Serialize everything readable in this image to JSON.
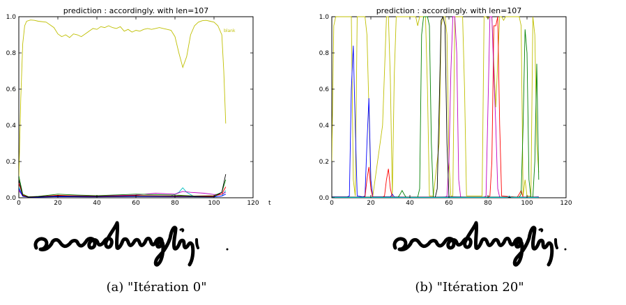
{
  "chart_data": [
    {
      "type": "line",
      "title": "prediction      : accordingly. with len=107",
      "xlabel": "t",
      "ylabel": "",
      "xlim": [
        0,
        120
      ],
      "ylim": [
        0,
        1.0
      ],
      "x_ticks": [
        "0",
        "20",
        "40",
        "60",
        "80",
        "100",
        "120"
      ],
      "y_ticks": [
        "0.0",
        "0.2",
        "0.4",
        "0.6",
        "0.8",
        "1.0"
      ],
      "grid": false,
      "legend": {
        "placement": "top-right",
        "entries": [
          "blank"
        ]
      },
      "caption": "(a) \"Itération 0\"",
      "handwriting_text": "accordingly.",
      "series": [
        {
          "name": "blank",
          "color": "#bfbf00",
          "x": [
            0,
            1,
            2,
            3,
            4,
            6,
            8,
            10,
            14,
            18,
            20,
            22,
            24,
            26,
            28,
            30,
            32,
            34,
            36,
            38,
            40,
            42,
            44,
            46,
            48,
            50,
            52,
            54,
            56,
            58,
            60,
            62,
            64,
            66,
            68,
            70,
            72,
            74,
            76,
            78,
            80,
            82,
            84,
            86,
            88,
            90,
            92,
            94,
            96,
            98,
            100,
            102,
            104,
            105,
            106
          ],
          "values": [
            0.1,
            0.55,
            0.85,
            0.95,
            0.975,
            0.982,
            0.98,
            0.975,
            0.97,
            0.94,
            0.905,
            0.89,
            0.9,
            0.885,
            0.905,
            0.9,
            0.89,
            0.905,
            0.92,
            0.935,
            0.93,
            0.945,
            0.94,
            0.95,
            0.94,
            0.935,
            0.945,
            0.92,
            0.93,
            0.915,
            0.925,
            0.92,
            0.93,
            0.935,
            0.93,
            0.935,
            0.94,
            0.935,
            0.93,
            0.925,
            0.89,
            0.8,
            0.72,
            0.78,
            0.9,
            0.95,
            0.97,
            0.978,
            0.98,
            0.975,
            0.97,
            0.95,
            0.9,
            0.7,
            0.41
          ]
        },
        {
          "color": "#00bfbf",
          "x": [
            0,
            2,
            5,
            10,
            20,
            40,
            60,
            78,
            82,
            84,
            86,
            90,
            100,
            104,
            106
          ],
          "values": [
            0.06,
            0.01,
            0.005,
            0.005,
            0.008,
            0.006,
            0.012,
            0.01,
            0.03,
            0.055,
            0.03,
            0.005,
            0.005,
            0.01,
            0.04
          ]
        },
        {
          "color": "#bf00bf",
          "x": [
            0,
            2,
            5,
            10,
            20,
            40,
            60,
            70,
            80,
            84,
            88,
            95,
            100,
            104,
            106
          ],
          "values": [
            0.04,
            0.01,
            0.004,
            0.006,
            0.012,
            0.01,
            0.015,
            0.025,
            0.02,
            0.035,
            0.03,
            0.025,
            0.018,
            0.02,
            0.03
          ]
        },
        {
          "color": "#008000",
          "x": [
            0,
            2,
            5,
            10,
            20,
            30,
            40,
            60,
            80,
            90,
            100,
            104,
            106
          ],
          "values": [
            0.12,
            0.02,
            0.005,
            0.008,
            0.02,
            0.015,
            0.012,
            0.02,
            0.015,
            0.01,
            0.012,
            0.03,
            0.1
          ]
        },
        {
          "color": "#ff0000",
          "x": [
            0,
            2,
            5,
            10,
            20,
            30,
            40,
            60,
            80,
            90,
            100,
            104,
            106
          ],
          "values": [
            0.08,
            0.015,
            0.004,
            0.006,
            0.014,
            0.01,
            0.008,
            0.012,
            0.01,
            0.008,
            0.01,
            0.02,
            0.06
          ]
        },
        {
          "color": "#0000ff",
          "x": [
            0,
            2,
            5,
            10,
            20,
            40,
            60,
            80,
            100,
            104,
            106
          ],
          "values": [
            0.05,
            0.008,
            0.003,
            0.004,
            0.006,
            0.005,
            0.007,
            0.006,
            0.005,
            0.01,
            0.02
          ]
        },
        {
          "color": "#000000",
          "x": [
            0,
            2,
            5,
            10,
            20,
            40,
            60,
            80,
            100,
            104,
            106
          ],
          "values": [
            0.1,
            0.012,
            0.004,
            0.006,
            0.01,
            0.007,
            0.01,
            0.008,
            0.006,
            0.03,
            0.13
          ]
        }
      ]
    },
    {
      "type": "line",
      "title": "prediction      : accordingly. with len=107",
      "xlabel": "",
      "ylabel": "",
      "xlim": [
        0,
        120
      ],
      "ylim": [
        0,
        1.0
      ],
      "x_ticks": [
        "0",
        "20",
        "40",
        "60",
        "80",
        "100",
        "120"
      ],
      "y_ticks": [
        "0.0",
        "0.2",
        "0.4",
        "0.6",
        "0.8",
        "1.0"
      ],
      "grid": false,
      "caption": "(b) \"Itération 20\"",
      "handwriting_text": "accordingly.",
      "series": [
        {
          "color": "#bfbf00",
          "x": [
            0,
            1,
            2,
            3,
            9,
            10,
            11,
            12,
            13,
            17,
            18,
            19,
            20,
            21,
            26,
            28,
            29,
            30,
            31,
            32,
            33,
            34,
            42,
            43,
            44,
            45,
            48,
            49,
            50,
            51,
            52,
            55,
            56,
            57,
            58,
            59,
            60,
            61,
            62,
            63,
            66,
            67,
            68,
            69,
            77,
            78,
            79,
            80,
            81,
            82,
            84,
            86,
            87,
            88,
            89,
            96,
            97,
            98,
            99,
            100,
            102,
            103,
            104,
            105,
            106
          ],
          "values": [
            0.2,
            0.95,
            1.0,
            1.0,
            1.0,
            1.0,
            0.1,
            0.01,
            1.0,
            1.0,
            0.9,
            0.5,
            0.05,
            0.01,
            0.4,
            1.0,
            1.0,
            0.65,
            0.01,
            0.68,
            1.0,
            1.0,
            1.0,
            1.0,
            0.95,
            1.0,
            1.0,
            0.6,
            0.01,
            0.01,
            0.01,
            0.3,
            0.95,
            1.0,
            1.0,
            0.9,
            0.2,
            0.01,
            0.01,
            1.0,
            1.0,
            1.0,
            0.6,
            0.01,
            0.01,
            1.0,
            1.0,
            0.99,
            1.0,
            1.0,
            0.5,
            1.0,
            1.0,
            0.98,
            1.0,
            1.0,
            0.95,
            0.01,
            0.1,
            0.01,
            0.01,
            1.0,
            0.9,
            0.3,
            0.14
          ]
        },
        {
          "color": "#0000ff",
          "x": [
            0,
            8,
            9,
            10,
            11,
            12,
            13,
            16,
            17,
            18,
            19,
            20,
            21,
            30,
            31,
            32,
            40,
            60,
            80,
            100,
            106
          ],
          "values": [
            0.005,
            0.005,
            0.01,
            0.6,
            0.84,
            0.4,
            0.01,
            0.005,
            0.01,
            0.3,
            0.55,
            0.1,
            0.005,
            0.005,
            0.02,
            0.005,
            0.003,
            0.005,
            0.003,
            0.003,
            0.005
          ]
        },
        {
          "color": "#ff0000",
          "x": [
            0,
            16,
            17,
            18,
            19,
            20,
            21,
            26,
            27,
            28,
            29,
            30,
            31,
            60,
            80,
            81,
            82,
            83,
            84,
            85,
            86,
            87,
            95,
            96,
            97,
            98,
            106
          ],
          "values": [
            0.003,
            0.003,
            0.005,
            0.1,
            0.17,
            0.05,
            0.003,
            0.003,
            0.01,
            0.1,
            0.16,
            0.05,
            0.003,
            0.003,
            0.003,
            0.01,
            0.2,
            0.95,
            0.95,
            1.0,
            0.4,
            0.01,
            0.003,
            0.02,
            0.04,
            0.003,
            0.003
          ]
        },
        {
          "color": "#bf00bf",
          "x": [
            0,
            58,
            59,
            60,
            61,
            62,
            63,
            64,
            65,
            66,
            78,
            79,
            80,
            81,
            82,
            83,
            84,
            85,
            86,
            106
          ],
          "values": [
            0.003,
            0.003,
            0.01,
            0.2,
            0.7,
            1.0,
            1.0,
            0.8,
            0.1,
            0.003,
            0.003,
            0.01,
            0.5,
            1.0,
            1.0,
            0.68,
            0.4,
            0.05,
            0.003,
            0.003
          ]
        },
        {
          "color": "#008000",
          "x": [
            0,
            34,
            35,
            36,
            37,
            38,
            44,
            45,
            46,
            47,
            48,
            49,
            50,
            51,
            52,
            96,
            97,
            98,
            99,
            100,
            101,
            102,
            103,
            104,
            105,
            106
          ],
          "values": [
            0.003,
            0.003,
            0.02,
            0.04,
            0.02,
            0.003,
            0.003,
            0.05,
            0.9,
            1.0,
            1.0,
            1.0,
            0.95,
            0.3,
            0.003,
            0.003,
            0.02,
            0.4,
            0.93,
            0.8,
            0.1,
            0.003,
            0.003,
            0.2,
            0.74,
            0.1
          ]
        },
        {
          "color": "#000000",
          "x": [
            0,
            53,
            54,
            55,
            56,
            57,
            58,
            59,
            60,
            106
          ],
          "values": [
            0.003,
            0.003,
            0.05,
            0.5,
            0.98,
            1.0,
            0.95,
            0.3,
            0.003,
            0.003
          ]
        },
        {
          "color": "#00bfbf",
          "x": [
            0,
            90,
            91,
            92,
            106
          ],
          "values": [
            0.002,
            0.002,
            0.01,
            0.002,
            0.002
          ]
        }
      ]
    }
  ]
}
